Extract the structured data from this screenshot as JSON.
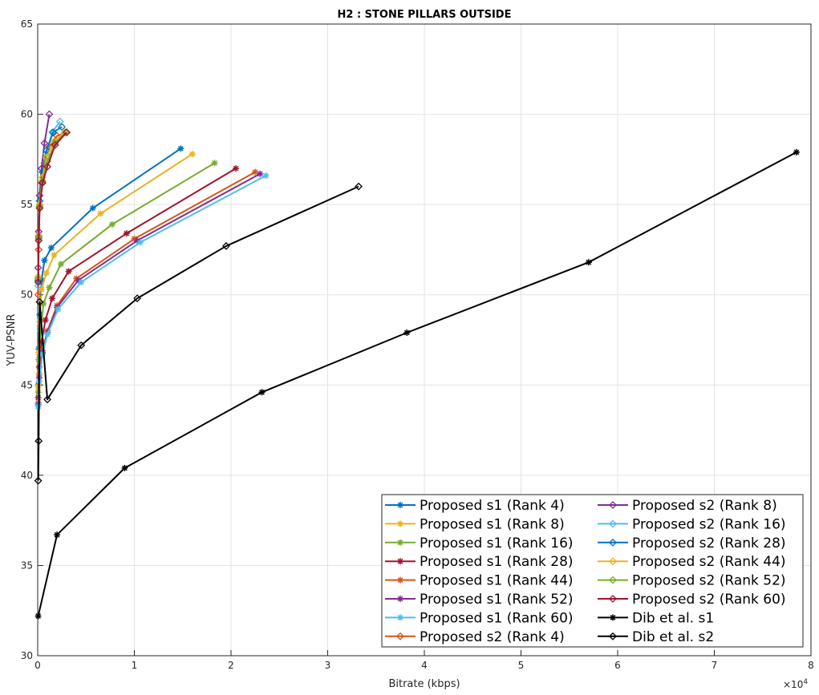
{
  "chart_data": {
    "type": "line",
    "title": "H2 : STONE PILLARS OUTSIDE",
    "xlabel": "Bitrate (kbps)",
    "ylabel": "YUV-PSNR",
    "x_multiplier_label": "×10",
    "x_multiplier_exponent": "4",
    "x_scale": 10000,
    "xlim": [
      0,
      8
    ],
    "ylim": [
      30,
      65
    ],
    "xticks": [
      "0",
      "1",
      "2",
      "3",
      "4",
      "5",
      "6",
      "7",
      "8"
    ],
    "yticks": [
      "30",
      "35",
      "40",
      "45",
      "50",
      "55",
      "60",
      "65"
    ],
    "grid": true,
    "legend_position": "bottom-right",
    "legend_columns": 2,
    "series": [
      {
        "name": "Proposed s1 (Rank 4)",
        "color": "#0072BD",
        "marker": "asterisk",
        "x": [
          0.005,
          0.01,
          0.02,
          0.04,
          0.07,
          0.14,
          0.57,
          1.48
        ],
        "y": [
          45.0,
          47.0,
          48.9,
          50.8,
          51.9,
          52.6,
          54.8,
          58.1
        ]
      },
      {
        "name": "Proposed s1 (Rank 8)",
        "color": "#EDB120",
        "marker": "asterisk",
        "x": [
          0.005,
          0.01,
          0.02,
          0.04,
          0.09,
          0.17,
          0.65,
          1.6
        ],
        "y": [
          44.9,
          46.8,
          48.5,
          50.3,
          51.2,
          52.2,
          54.5,
          57.8
        ]
      },
      {
        "name": "Proposed s1 (Rank 16)",
        "color": "#77AC30",
        "marker": "asterisk",
        "x": [
          0.005,
          0.01,
          0.03,
          0.06,
          0.12,
          0.24,
          0.77,
          1.83
        ],
        "y": [
          44.6,
          46.4,
          48.0,
          49.5,
          50.4,
          51.7,
          53.9,
          57.3
        ]
      },
      {
        "name": "Proposed s1 (Rank 28)",
        "color": "#A2142F",
        "marker": "asterisk",
        "x": [
          0.005,
          0.015,
          0.04,
          0.08,
          0.15,
          0.32,
          0.92,
          2.05
        ],
        "y": [
          44.3,
          46.0,
          47.4,
          48.6,
          49.8,
          51.3,
          53.4,
          57.0
        ]
      },
      {
        "name": "Proposed s1 (Rank 44)",
        "color": "#D95319",
        "marker": "asterisk",
        "x": [
          0.005,
          0.015,
          0.05,
          0.1,
          0.2,
          0.4,
          1.0,
          2.25
        ],
        "y": [
          44.0,
          45.6,
          46.9,
          48.0,
          49.4,
          50.9,
          53.1,
          56.8
        ]
      },
      {
        "name": "Proposed s1 (Rank 52)",
        "color": "#7E2F8E",
        "marker": "asterisk",
        "x": [
          0.005,
          0.015,
          0.05,
          0.1,
          0.2,
          0.42,
          1.03,
          2.3
        ],
        "y": [
          43.9,
          45.4,
          46.8,
          47.9,
          49.3,
          50.8,
          53.0,
          56.7
        ]
      },
      {
        "name": "Proposed s1 (Rank 60)",
        "color": "#4DBEEE",
        "marker": "asterisk",
        "x": [
          0.005,
          0.015,
          0.05,
          0.1,
          0.21,
          0.45,
          1.06,
          2.36
        ],
        "y": [
          43.8,
          45.2,
          46.7,
          47.8,
          49.2,
          50.7,
          52.9,
          56.6
        ]
      },
      {
        "name": "Proposed s2 (Rank 4)",
        "color": "#D95319",
        "marker": "diamond",
        "x": [
          0.005,
          0.01,
          0.02,
          0.04,
          0.07,
          0.12,
          0.2,
          0.3
        ],
        "y": [
          50.0,
          52.5,
          54.8,
          56.2,
          57.3,
          58.2,
          58.8,
          59.0
        ]
      },
      {
        "name": "Proposed s2 (Rank 8)",
        "color": "#7E2F8E",
        "marker": "diamond",
        "x": [
          0.005,
          0.01,
          0.02,
          0.04,
          0.07,
          0.12
        ],
        "y": [
          51.5,
          53.5,
          55.5,
          57.0,
          58.4,
          60.0
        ]
      },
      {
        "name": "Proposed s2 (Rank 16)",
        "color": "#4DBEEE",
        "marker": "diamond",
        "x": [
          0.005,
          0.01,
          0.02,
          0.05,
          0.09,
          0.15,
          0.23
        ],
        "y": [
          50.5,
          53.0,
          55.0,
          56.5,
          57.8,
          59.0,
          59.6
        ]
      },
      {
        "name": "Proposed s2 (Rank 28)",
        "color": "#0072BD",
        "marker": "diamond",
        "x": [
          0.005,
          0.01,
          0.02,
          0.05,
          0.09,
          0.16,
          0.25
        ],
        "y": [
          50.8,
          53.2,
          55.2,
          56.8,
          58.0,
          59.0,
          59.3
        ]
      },
      {
        "name": "Proposed s2 (Rank 44)",
        "color": "#EDB120",
        "marker": "diamond",
        "x": [
          0.005,
          0.01,
          0.02,
          0.05,
          0.09,
          0.17,
          0.28
        ],
        "y": [
          51.0,
          53.3,
          55.0,
          56.5,
          57.6,
          58.5,
          59.0
        ]
      },
      {
        "name": "Proposed s2 (Rank 52)",
        "color": "#77AC30",
        "marker": "diamond",
        "x": [
          0.005,
          0.01,
          0.02,
          0.05,
          0.1,
          0.18,
          0.29
        ],
        "y": [
          50.9,
          53.1,
          54.9,
          56.3,
          57.4,
          58.4,
          59.0
        ]
      },
      {
        "name": "Proposed s2 (Rank 60)",
        "color": "#A2142F",
        "marker": "diamond",
        "x": [
          0.005,
          0.01,
          0.02,
          0.05,
          0.1,
          0.18,
          0.3
        ],
        "y": [
          50.7,
          53.0,
          54.8,
          56.2,
          57.1,
          58.3,
          59.0
        ]
      },
      {
        "name": "Dib et al. s1",
        "color": "#000000",
        "marker": "asterisk",
        "x": [
          0.005,
          0.2,
          0.9,
          2.32,
          3.82,
          5.7,
          7.85
        ],
        "y": [
          32.2,
          36.7,
          40.4,
          44.6,
          47.9,
          51.8,
          57.9
        ]
      },
      {
        "name": "Dib et al. s2",
        "color": "#000000",
        "marker": "diamond",
        "x": [
          0.005,
          0.01,
          0.02,
          0.1,
          0.45,
          1.03,
          1.95,
          3.32
        ],
        "y": [
          39.7,
          41.9,
          49.6,
          44.2,
          47.2,
          49.8,
          52.7,
          56.0
        ]
      }
    ]
  }
}
